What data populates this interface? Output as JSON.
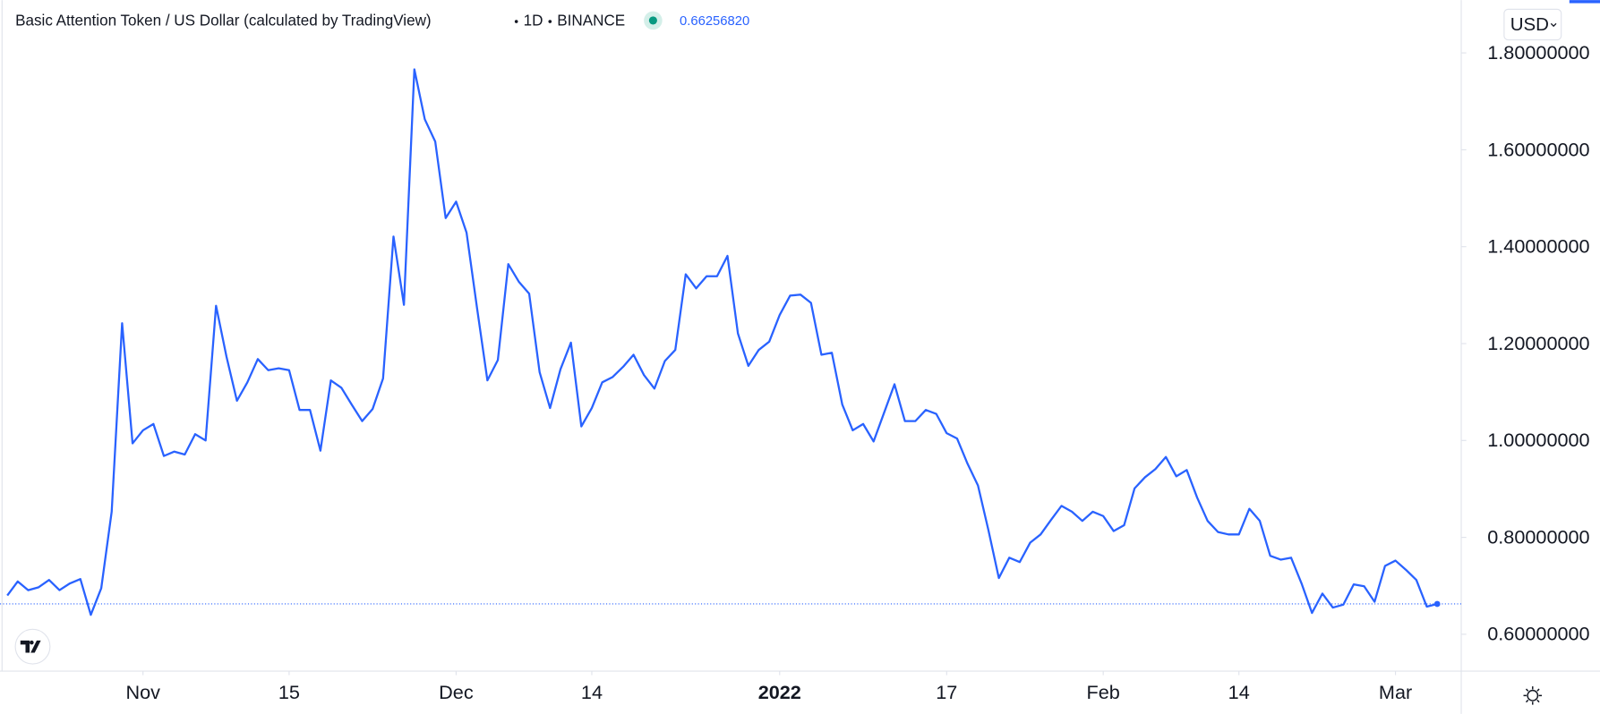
{
  "header": {
    "symbol": "Basic Attention Token / US Dollar (calculated by TradingView)",
    "interval": "1D",
    "exchange": "BINANCE",
    "currency": "USD"
  },
  "chart_data": {
    "type": "line",
    "color": "#2962ff",
    "grid": false,
    "values": [
      0.68,
      0.709,
      0.691,
      0.697,
      0.712,
      0.691,
      0.705,
      0.714,
      0.64,
      0.695,
      0.853,
      1.242,
      0.994,
      1.021,
      1.034,
      0.968,
      0.977,
      0.971,
      1.013,
      1.0,
      1.278,
      1.173,
      1.082,
      1.12,
      1.168,
      1.145,
      1.149,
      1.145,
      1.063,
      1.063,
      0.979,
      1.124,
      1.109,
      1.074,
      1.04,
      1.065,
      1.128,
      1.421,
      1.28,
      1.766,
      1.663,
      1.617,
      1.459,
      1.493,
      1.429,
      1.274,
      1.124,
      1.166,
      1.364,
      1.328,
      1.303,
      1.141,
      1.067,
      1.147,
      1.202,
      1.029,
      1.067,
      1.12,
      1.131,
      1.152,
      1.177,
      1.135,
      1.107,
      1.164,
      1.187,
      1.343,
      1.314,
      1.339,
      1.339,
      1.381,
      1.221,
      1.154,
      1.187,
      1.204,
      1.259,
      1.299,
      1.301,
      1.284,
      1.177,
      1.181,
      1.074,
      1.021,
      1.034,
      0.998,
      1.057,
      1.116,
      1.04,
      1.04,
      1.063,
      1.055,
      1.015,
      1.004,
      0.952,
      0.907,
      0.815,
      0.716,
      0.758,
      0.749,
      0.789,
      0.806,
      0.836,
      0.865,
      0.853,
      0.834,
      0.853,
      0.844,
      0.813,
      0.825,
      0.901,
      0.924,
      0.941,
      0.966,
      0.926,
      0.939,
      0.882,
      0.834,
      0.811,
      0.806,
      0.806,
      0.859,
      0.834,
      0.762,
      0.754,
      0.758,
      0.705,
      0.644,
      0.684,
      0.655,
      0.661,
      0.703,
      0.699,
      0.667,
      0.741,
      0.752,
      0.733,
      0.712,
      0.657,
      0.6625682
    ],
    "last_price": {
      "value": 0.6625682,
      "label": "0.66256820"
    },
    "xlim": [
      -0.7,
      139.3
    ],
    "xticks": [
      {
        "value": 13,
        "label": "Nov"
      },
      {
        "value": 27,
        "label": "15"
      },
      {
        "value": 43,
        "label": "Dec"
      },
      {
        "value": 56,
        "label": "14"
      },
      {
        "value": 74,
        "label": "2022",
        "bold": true
      },
      {
        "value": 90,
        "label": "17"
      },
      {
        "value": 105,
        "label": "Feb"
      },
      {
        "value": 118,
        "label": "14"
      },
      {
        "value": 133,
        "label": "Mar"
      }
    ],
    "ylim": [
      0.524,
      1.909
    ],
    "yticks": [
      {
        "value": 0.6,
        "label": "0.60000000"
      },
      {
        "value": 0.8,
        "label": "0.80000000"
      },
      {
        "value": 1.0,
        "label": "1.00000000"
      },
      {
        "value": 1.2,
        "label": "1.20000000"
      },
      {
        "value": 1.4,
        "label": "1.40000000"
      },
      {
        "value": 1.6,
        "label": "1.60000000"
      },
      {
        "value": 1.8,
        "label": "1.80000000"
      }
    ]
  }
}
